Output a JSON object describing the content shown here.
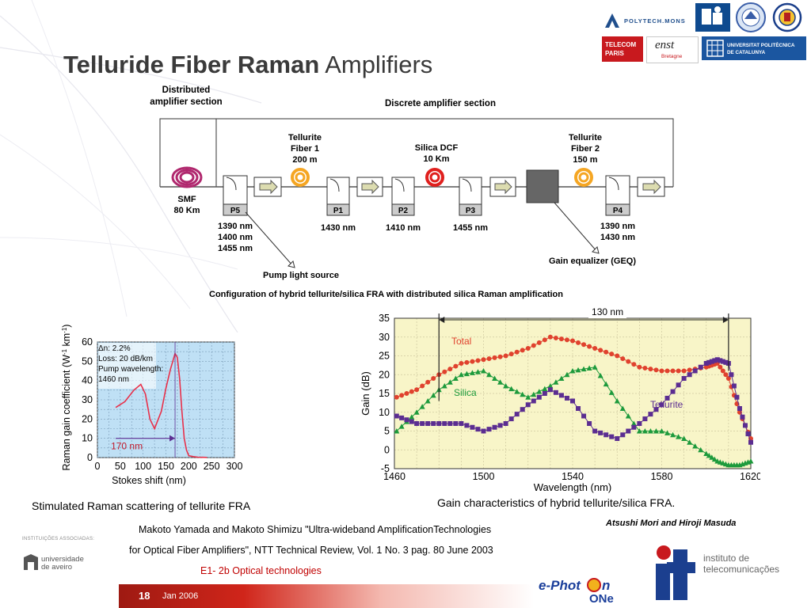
{
  "slide": {
    "title_bold": "Telluride Fiber Raman",
    "title_rest": "Amplifiers",
    "credit": "Atsushi Mori and Hiroji Masuda",
    "reference_line1": "Makoto Yamada and Makoto Shimizu \"Ultra-wideband AmplificationTechnologies",
    "reference_line2": "for Optical Fiber Amplifiers\", NTT Technical Review, Vol. 1 No. 3  pag. 80 June 2003",
    "section_label": "E1- 2b Optical technologies",
    "page_number": "18",
    "date": "Jan 2006"
  },
  "logos": {
    "polytech": "POLYTECH.MONS",
    "upc_line1": "UNIVERSITAT POLITÈCNICA",
    "upc_line2": "DE CATALUNYA",
    "ta_line1": "TELECOM",
    "ta_line2": "PARIS",
    "enst_main": "enst",
    "enst_sub": "Bretagne",
    "assoc_label": "INSTITUIÇÕES ASSOCIADAS:",
    "ua_line1": "universidade",
    "ua_line2": "de aveiro",
    "it_line1": "instituto de",
    "it_line2": "telecomunicações",
    "ephoton_a": "e-Phot",
    "ephoton_b": "n",
    "ephoton_c": "ONe"
  },
  "configuration_diagram": {
    "distributed_label_1": "Distributed",
    "distributed_label_2": "amplifier section",
    "discrete_label": "Discrete amplifier section",
    "smf_label_1": "SMF",
    "smf_label_2": "80 Km",
    "tellurite1_1": "Tellurite",
    "tellurite1_2": "Fiber 1",
    "tellurite1_3": "200 m",
    "silica_1": "Silica DCF",
    "silica_2": "10 Km",
    "tellurite2_1": "Tellurite",
    "tellurite2_2": "Fiber 2",
    "tellurite2_3": "150 m",
    "p5": "P5",
    "p1": "P1",
    "p2": "P2",
    "p3": "P3",
    "p4": "P4",
    "p5_wl_1": "1390 nm",
    "p5_wl_2": "1400 nm",
    "p5_wl_3": "1455 nm",
    "p1_wl": "1430 nm",
    "p2_wl": "1410 nm",
    "p3_wl": "1455 nm",
    "p4_wl_1": "1390 nm",
    "p4_wl_2": "1430 nm",
    "pump_source": "Pump light source",
    "geq": "Gain equalizer (GEQ)",
    "caption": "Configuration of hybrid tellurite/silica FRA with distributed silica Raman amplification"
  },
  "raman_chart": {
    "caption": "Stimulated Raman scattering of tellurite FRA",
    "ylabel": "Raman gain coefficient (W",
    "ylabel_sup1": "-1",
    "ylabel_mid": " km",
    "ylabel_sup2": "-1",
    "ylabel_end": ")",
    "xlabel": "Stokes shift (nm)",
    "box_1": "Δn: 2.2%",
    "box_2": "Loss: 20 dB/km",
    "box_3": "Pump wavelength:",
    "box_4": "1460 nm",
    "span_label": "170 nm",
    "x_ticks": [
      "0",
      "50",
      "100",
      "150",
      "200",
      "250",
      "300"
    ],
    "y_ticks": [
      "0",
      "10",
      "20",
      "30",
      "40",
      "50",
      "60"
    ]
  },
  "gain_chart": {
    "caption": "Gain characteristics of hybrid tellurite/silica FRA.",
    "ylabel": "Gain (dB)",
    "xlabel": "Wavelength (nm)",
    "span_label": "130 nm",
    "label_total": "Total",
    "label_silica": "Silica",
    "label_tellurite": "Tellurite",
    "x_ticks": [
      "1460",
      "1500",
      "1540",
      "1580",
      "1620"
    ],
    "y_ticks": [
      "-5",
      "0",
      "5",
      "10",
      "15",
      "20",
      "25",
      "30",
      "35"
    ]
  },
  "colors": {
    "title": "#3a3a3a",
    "accent_red": "#c00000",
    "total_series": "#e0422e",
    "silica_series": "#1d9a3c",
    "tellurite_series": "#5b2d91",
    "raman_curve": "#e8304a",
    "coil_orange": "#f5a623",
    "coil_red": "#e0201e",
    "coil_smf": "#b0286e"
  },
  "chart_data": [
    {
      "type": "line",
      "title": "Stimulated Raman scattering of tellurite FRA",
      "xlabel": "Stokes shift (nm)",
      "ylabel": "Raman gain coefficient (W-1 km-1)",
      "xlim": [
        0,
        300
      ],
      "ylim": [
        0,
        60
      ],
      "grid": true,
      "series": [
        {
          "x": [
            40,
            60,
            80,
            95,
            105,
            115,
            125,
            140,
            150,
            160,
            165,
            170,
            175,
            180,
            185,
            190,
            195,
            200,
            210,
            220,
            240
          ],
          "values": [
            26,
            29,
            35,
            38,
            33,
            20,
            15,
            24,
            36,
            46,
            50,
            54,
            52,
            41,
            24,
            10,
            4,
            1,
            0.5,
            0.2,
            0.1
          ]
        }
      ],
      "annotation_span": [
        40,
        170
      ]
    },
    {
      "type": "line",
      "title": "Gain characteristics of hybrid tellurite/silica FRA.",
      "xlabel": "Wavelength (nm)",
      "ylabel": "Gain (dB)",
      "xlim": [
        1460,
        1620
      ],
      "ylim": [
        -5,
        35
      ],
      "grid": true,
      "x": [
        1461,
        1470,
        1480,
        1490,
        1500,
        1510,
        1520,
        1530,
        1540,
        1550,
        1560,
        1570,
        1580,
        1590,
        1600,
        1605,
        1610,
        1615,
        1620
      ],
      "series": [
        {
          "name": "Total",
          "values": [
            14,
            16,
            20,
            23,
            24,
            25,
            27,
            30,
            29,
            27,
            25,
            22,
            21,
            21,
            22,
            23,
            19,
            10,
            3
          ]
        },
        {
          "name": "Silica",
          "values": [
            5,
            10,
            16,
            20,
            21,
            17,
            14,
            17,
            21,
            22,
            13,
            5,
            5,
            3,
            -1,
            -3,
            -4,
            -4,
            -3
          ]
        },
        {
          "name": "Tellurite",
          "values": [
            9,
            7,
            7,
            7,
            5,
            7,
            12,
            16,
            13,
            5,
            3,
            7,
            12,
            19,
            23,
            24,
            23,
            11,
            2
          ]
        }
      ],
      "annotation_span": [
        1480,
        1610
      ]
    }
  ]
}
